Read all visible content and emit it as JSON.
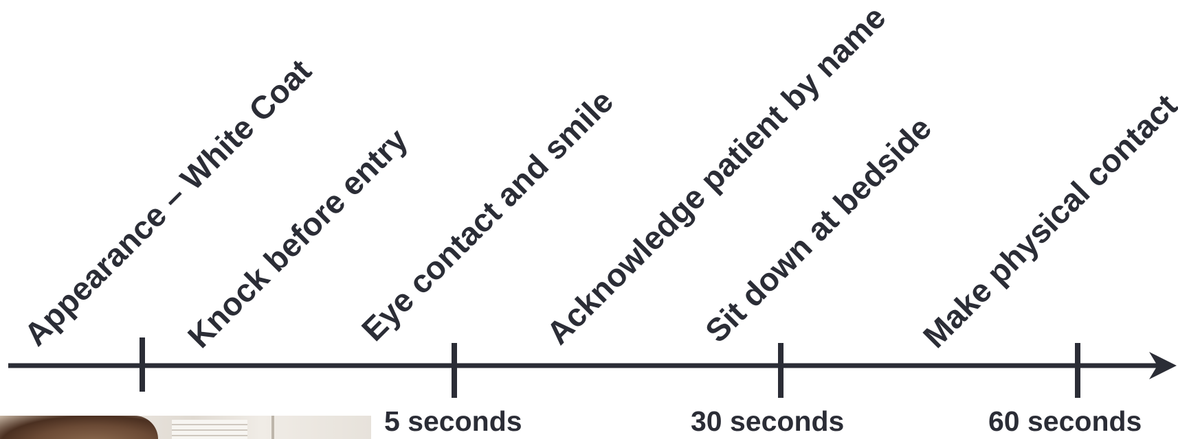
{
  "diagram": {
    "steps": [
      "Appearance – White Coat",
      "Knock before entry",
      "Eye contact and smile",
      "Acknowledge patient by name",
      "Sit down at bedside",
      "Make physical contact"
    ],
    "time_markers": [
      "5 seconds",
      "30 seconds",
      "60 seconds"
    ],
    "colors": {
      "axis": "#2b2d36",
      "text": "#2b2d36",
      "background": "#ffffff"
    }
  },
  "photo": {
    "icon": "person-photo"
  }
}
